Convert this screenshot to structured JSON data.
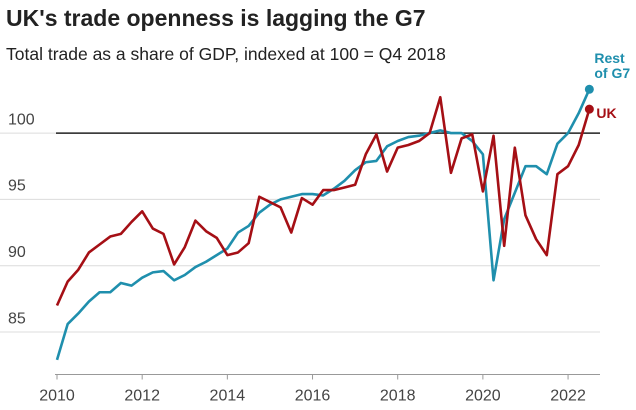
{
  "chart_data": {
    "type": "line",
    "title": "UK's trade openness is lagging the G7",
    "subtitle": "Total trade as a share of GDP, indexed at 100 = Q4 2018",
    "x": [
      2010,
      2010.25,
      2010.5,
      2010.75,
      2011,
      2011.25,
      2011.5,
      2011.75,
      2012,
      2012.25,
      2012.5,
      2012.75,
      2013,
      2013.25,
      2013.5,
      2013.75,
      2014,
      2014.25,
      2014.5,
      2014.75,
      2015,
      2015.25,
      2015.5,
      2015.75,
      2016,
      2016.25,
      2016.5,
      2016.75,
      2017,
      2017.25,
      2017.5,
      2017.75,
      2018,
      2018.25,
      2018.5,
      2018.75,
      2019,
      2019.25,
      2019.5,
      2019.75,
      2020,
      2020.25,
      2020.5,
      2020.75,
      2021,
      2021.25,
      2021.5,
      2021.75,
      2022,
      2022.25,
      2022.5
    ],
    "series": [
      {
        "name": "Rest of G7",
        "color": "#1f8fad",
        "values": [
          82.9,
          85.6,
          86.4,
          87.3,
          88.0,
          88.0,
          88.7,
          88.5,
          89.1,
          89.5,
          89.6,
          88.9,
          89.3,
          89.9,
          90.3,
          90.8,
          91.3,
          92.5,
          93.0,
          94.0,
          94.6,
          95.0,
          95.2,
          95.4,
          95.4,
          95.3,
          95.8,
          96.4,
          97.2,
          97.8,
          97.9,
          99.0,
          99.4,
          99.7,
          99.8,
          100,
          100.2,
          100.0,
          100.0,
          99.4,
          98.4,
          88.9,
          93.5,
          95.5,
          97.5,
          97.5,
          96.9,
          99.2,
          100.0,
          101.5,
          103.3
        ]
      },
      {
        "name": "UK",
        "color": "#a50f15",
        "values": [
          87.0,
          88.8,
          89.7,
          91.0,
          91.6,
          92.2,
          92.4,
          93.3,
          94.1,
          92.8,
          92.4,
          90.1,
          91.4,
          93.4,
          92.6,
          92.1,
          90.8,
          91.0,
          91.7,
          95.2,
          94.8,
          94.4,
          92.5,
          95.1,
          94.6,
          95.7,
          95.7,
          95.9,
          96.1,
          98.4,
          99.9,
          97.1,
          98.9,
          99.1,
          99.4,
          100,
          102.7,
          97.0,
          99.6,
          99.9,
          95.6,
          99.8,
          91.5,
          98.9,
          93.8,
          92.0,
          90.8,
          96.9,
          97.5,
          99.1,
          101.8
        ]
      }
    ],
    "xlim": [
      2010,
      2022.75
    ],
    "xticks": [
      2010,
      2012,
      2014,
      2016,
      2018,
      2020,
      2022
    ],
    "ylim": [
      81.8,
      104
    ],
    "yticks": [
      85,
      90,
      95,
      100
    ],
    "reference_line": 100,
    "grid": true
  }
}
